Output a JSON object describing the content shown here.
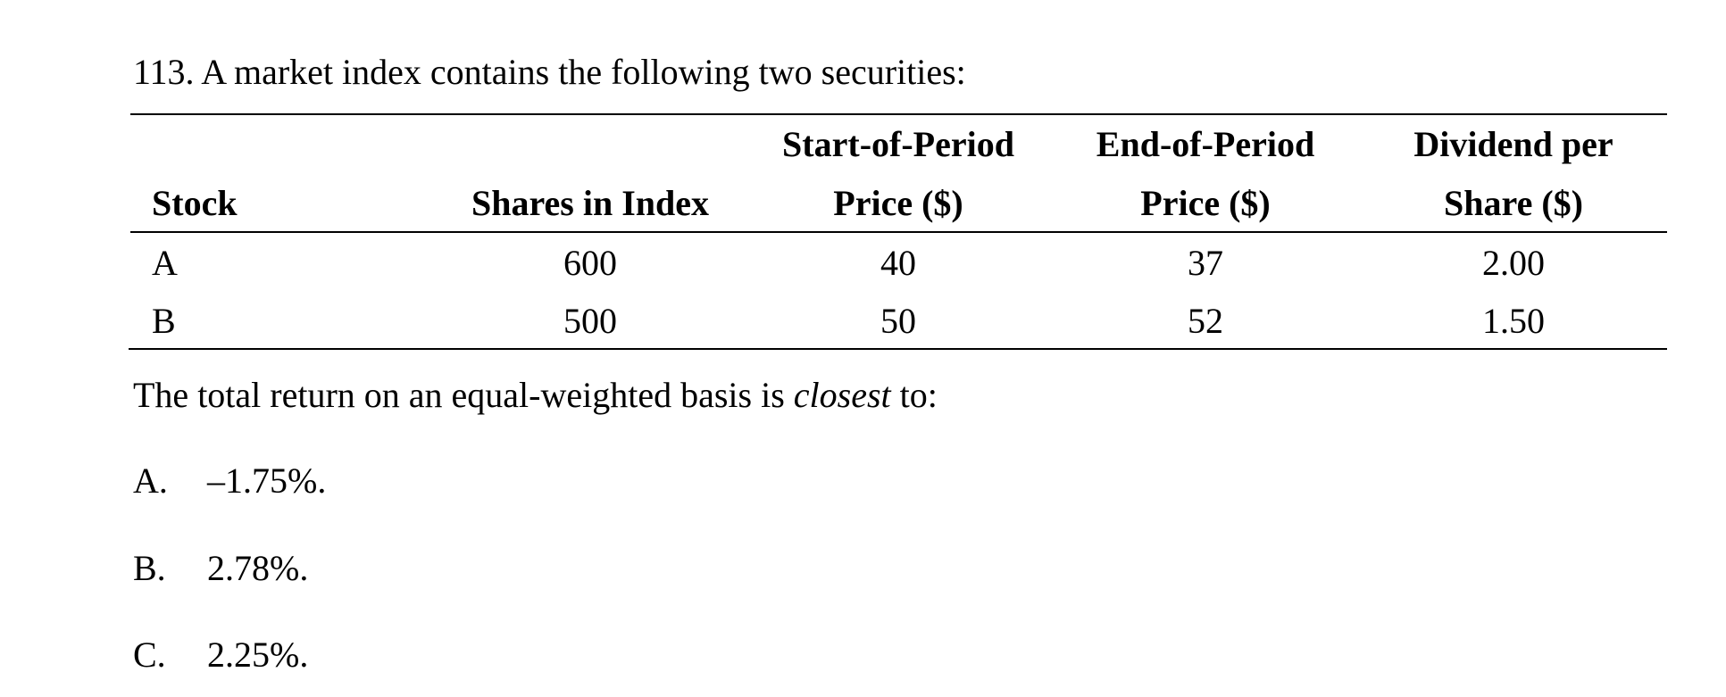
{
  "question": {
    "title": "113. A market index contains the following two securities:"
  },
  "table": {
    "headers": [
      [
        "Stock"
      ],
      [
        "Shares in Index"
      ],
      [
        "Start-of-Period",
        "Price ($)"
      ],
      [
        "End-of-Period",
        "Price ($)"
      ],
      [
        "Dividend per",
        "Share ($)"
      ]
    ],
    "rows": [
      [
        "A",
        "600",
        "40",
        "37",
        "2.00"
      ],
      [
        "B",
        "500",
        "50",
        "52",
        "1.50"
      ]
    ]
  },
  "prompt": {
    "before": "The total return on an equal-weighted basis is ",
    "emphasis": "closest",
    "after": " to:"
  },
  "options": [
    {
      "letter": "A.",
      "text": "–1.75%."
    },
    {
      "letter": "B.",
      "text": "2.78%."
    },
    {
      "letter": "C.",
      "text": "2.25%."
    }
  ]
}
